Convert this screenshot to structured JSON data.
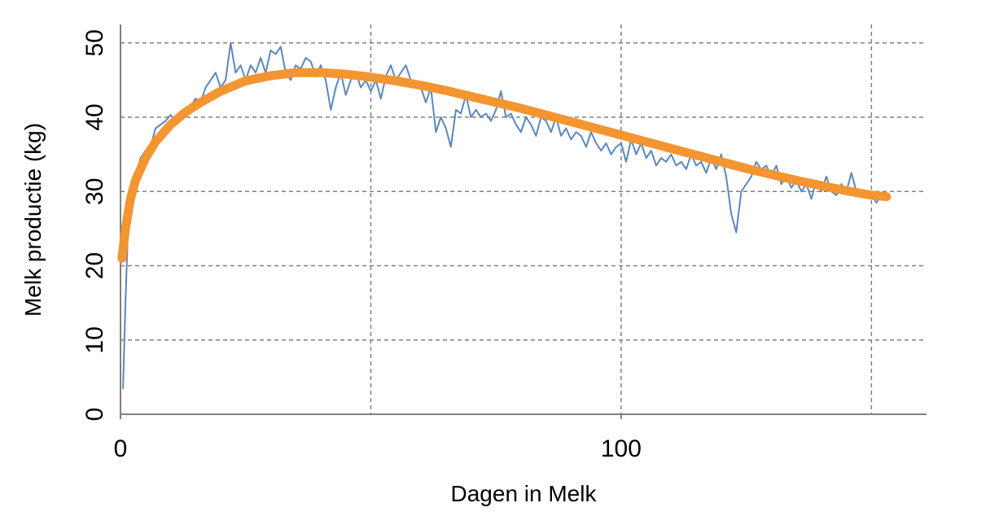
{
  "chart_data": {
    "type": "line",
    "xlabel": "Dagen in Melk",
    "ylabel": "Melk productie (kg)",
    "xlim": [
      0,
      161
    ],
    "xticks": [
      0,
      100
    ],
    "xgrid": [
      50,
      100,
      150
    ],
    "ylim": [
      0,
      52.5
    ],
    "yticks": [
      0,
      10,
      20,
      30,
      40,
      50
    ],
    "grid": true,
    "series": [
      {
        "color": "#5b87bd",
        "x": [
          0.5,
          1,
          1.5,
          2,
          3,
          4,
          5,
          6,
          7,
          8,
          9,
          10,
          11,
          12,
          13,
          14,
          15,
          16,
          17,
          18,
          19,
          20,
          21,
          22,
          23,
          24,
          25,
          26,
          27,
          28,
          29,
          30,
          31,
          32,
          33,
          34,
          35,
          36,
          37,
          38,
          39,
          40,
          41,
          42,
          43,
          44,
          45,
          46,
          47,
          48,
          49,
          50,
          51,
          52,
          53,
          54,
          55,
          56,
          57,
          58,
          59,
          60,
          61,
          62,
          63,
          64,
          65,
          66,
          67,
          68,
          69,
          70,
          71,
          72,
          73,
          74,
          75,
          76,
          77,
          78,
          79,
          80,
          81,
          82,
          83,
          84,
          85,
          86,
          87,
          88,
          89,
          90,
          91,
          92,
          93,
          94,
          95,
          96,
          97,
          98,
          99,
          100,
          101,
          102,
          103,
          104,
          105,
          106,
          107,
          108,
          109,
          110,
          111,
          112,
          113,
          114,
          115,
          116,
          117,
          118,
          119,
          120,
          121,
          122,
          123,
          124,
          125,
          126,
          127,
          128,
          129,
          130,
          131,
          132,
          133,
          134,
          135,
          136,
          137,
          138,
          139,
          140,
          141,
          142,
          143,
          144,
          145,
          146,
          147,
          148,
          149,
          150,
          151,
          152
        ],
        "values": [
          3.5,
          15,
          25,
          28,
          32,
          34.5,
          35.5,
          36,
          38.5,
          39,
          39.5,
          40.3,
          39.5,
          39.5,
          41,
          41.5,
          42.5,
          42,
          44,
          45,
          46,
          44,
          45,
          50,
          46,
          47,
          45,
          47,
          46,
          48,
          46,
          49,
          48.5,
          49.5,
          46,
          45,
          47,
          46.5,
          48,
          47.5,
          45.5,
          47,
          45,
          41,
          44,
          46,
          43,
          45,
          46,
          44,
          45,
          43.5,
          45,
          42.5,
          45.5,
          47,
          45,
          46,
          47,
          45,
          44.5,
          44,
          42,
          44,
          38,
          40,
          38.5,
          36,
          41,
          40.5,
          43,
          40,
          41,
          40,
          40.5,
          39.5,
          41,
          43.5,
          40,
          40.5,
          39,
          38,
          40,
          39,
          37.5,
          40,
          39.5,
          38,
          40,
          37.5,
          38.5,
          37,
          38,
          37.5,
          36,
          38,
          36.5,
          35.5,
          36.5,
          35,
          36,
          36.5,
          34,
          37,
          35,
          36.5,
          34.5,
          35.5,
          33.5,
          34.5,
          34,
          35,
          33.5,
          34,
          33,
          35,
          33.5,
          34,
          32.5,
          34.5,
          33,
          35,
          32,
          27,
          24.5,
          30,
          31,
          32,
          34,
          33,
          33.5,
          32,
          33.5,
          31,
          32,
          30.5,
          31.5,
          30,
          31,
          29,
          31.5,
          30,
          32,
          30,
          29.5,
          31,
          30,
          32.5,
          30,
          29.5,
          30,
          29.5,
          28.5,
          29.5
        ]
      },
      {
        "color": "#f39531",
        "x": [
          0.3,
          1,
          2,
          3,
          5,
          7,
          10,
          13,
          16,
          20,
          25,
          30,
          35,
          40,
          45,
          50,
          55,
          60,
          65,
          70,
          75,
          80,
          85,
          90,
          95,
          100,
          105,
          110,
          115,
          120,
          125,
          130,
          135,
          140,
          145,
          150,
          153
        ],
        "values": [
          21,
          25,
          29,
          31.5,
          34.5,
          36.7,
          39,
          40.7,
          42,
          43.5,
          44.9,
          45.6,
          46,
          46,
          45.8,
          45.4,
          44.9,
          44.3,
          43.6,
          42.8,
          42,
          41.2,
          40.3,
          39.4,
          38.5,
          37.6,
          36.7,
          35.8,
          34.9,
          34,
          33.1,
          32.3,
          31.5,
          30.8,
          30.1,
          29.5,
          29.3
        ]
      }
    ]
  }
}
